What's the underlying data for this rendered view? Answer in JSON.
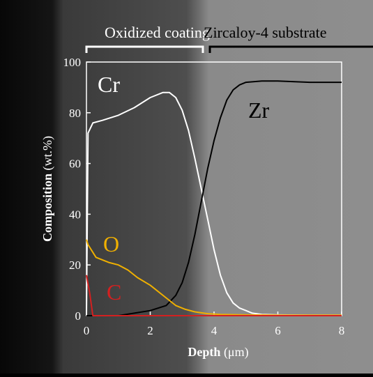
{
  "chart_data": {
    "type": "line",
    "xlabel": "Depth",
    "xlabel_unit": "(μm)",
    "ylabel": "Composition",
    "ylabel_unit": "(wt.%)",
    "xlim": [
      0,
      8
    ],
    "ylim": [
      0,
      100
    ],
    "x_ticks": [
      "0",
      "2",
      "4",
      "6",
      "8"
    ],
    "y_ticks": [
      "0",
      "20",
      "40",
      "60",
      "80",
      "100"
    ],
    "x_tick_values": [
      0,
      2,
      4,
      6,
      8
    ],
    "y_tick_values": [
      0,
      20,
      40,
      60,
      80,
      100
    ],
    "regions": [
      {
        "label": "Oxidized coating",
        "x_range": [
          0,
          3.7
        ]
      },
      {
        "label": "Zircaloy-4 substrate",
        "x_range": [
          3.8,
          9
        ]
      }
    ],
    "series": [
      {
        "name": "Cr",
        "color": "#ffffff",
        "x": [
          0,
          0.05,
          0.2,
          0.5,
          1.0,
          1.5,
          2.0,
          2.4,
          2.6,
          2.8,
          3.0,
          3.2,
          3.4,
          3.6,
          3.8,
          4.0,
          4.2,
          4.4,
          4.6,
          4.8,
          5.0,
          5.2,
          5.5,
          6.0,
          7.0,
          8.0
        ],
        "y": [
          0,
          72,
          76,
          77,
          79,
          82,
          86,
          88,
          88,
          86,
          81,
          73,
          62,
          50,
          38,
          26,
          16,
          9,
          5,
          3,
          2,
          1,
          0.5,
          0.3,
          0.2,
          0.2
        ]
      },
      {
        "name": "Zr",
        "color": "#000000",
        "x": [
          0,
          1.0,
          1.5,
          2.0,
          2.5,
          2.8,
          3.0,
          3.2,
          3.4,
          3.6,
          3.8,
          4.0,
          4.2,
          4.4,
          4.6,
          4.8,
          5.0,
          5.5,
          6.0,
          7.0,
          8.0
        ],
        "y": [
          0,
          0,
          1,
          2,
          4,
          8,
          13,
          21,
          32,
          45,
          58,
          69,
          78,
          85,
          89,
          91,
          92,
          92.5,
          92.5,
          92,
          92
        ]
      },
      {
        "name": "O",
        "color": "#f0b000",
        "x": [
          0,
          0.05,
          0.3,
          0.7,
          1.0,
          1.3,
          1.6,
          2.0,
          2.4,
          2.8,
          3.1,
          3.4,
          3.8,
          4.2,
          5.0,
          6.0,
          8.0
        ],
        "y": [
          30,
          28,
          23,
          21,
          20,
          18,
          15,
          12,
          8,
          4,
          2.5,
          1.5,
          0.8,
          0.5,
          0.3,
          0.2,
          0.2
        ]
      },
      {
        "name": "C",
        "color": "#d42020",
        "x": [
          0,
          0.1,
          0.2,
          0.5,
          1.0,
          2.0,
          3.0,
          4.0,
          6.0,
          8.0
        ],
        "y": [
          16,
          9,
          0,
          0,
          0,
          0,
          0,
          0,
          0,
          0
        ]
      }
    ]
  }
}
